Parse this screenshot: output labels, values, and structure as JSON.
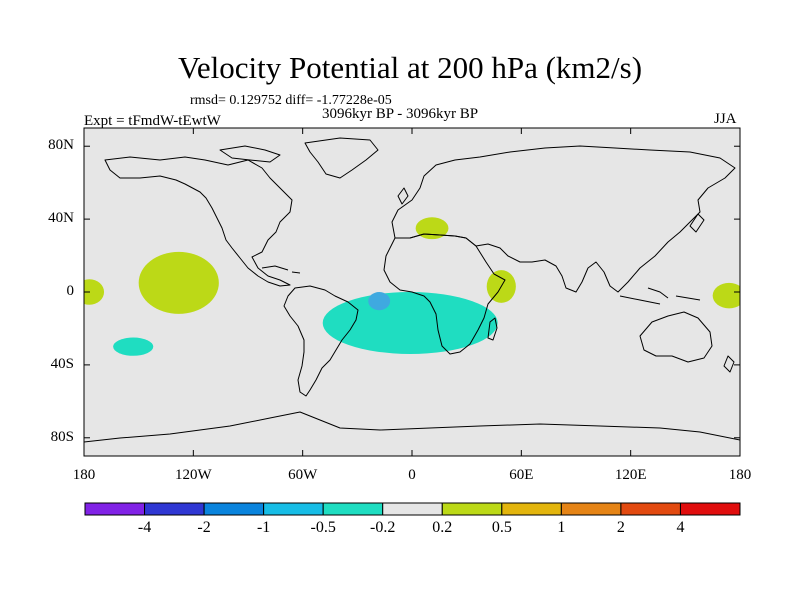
{
  "title": "Velocity Potential at 200 hPa (km2/s)",
  "stats": "rmsd= 0.129752 diff= -1.77228e-05",
  "period": "3096kyr BP - 3096kyr BP",
  "experiment": "Expt = tFmdW-tEwtW",
  "season": "JJA",
  "map": {
    "ocean_color": "#e6e6e6",
    "coast_color": "#000000",
    "lat_ticks": [
      {
        "lat": 80,
        "label": "80N"
      },
      {
        "lat": 40,
        "label": "40N"
      },
      {
        "lat": 0,
        "label": "0"
      },
      {
        "lat": -40,
        "label": "40S"
      },
      {
        "lat": -80,
        "label": "80S"
      }
    ],
    "lon_ticks": [
      {
        "lon": -180,
        "label": "180"
      },
      {
        "lon": -120,
        "label": "120W"
      },
      {
        "lon": -60,
        "label": "60W"
      },
      {
        "lon": 0,
        "label": "0"
      },
      {
        "lon": 60,
        "label": "60E"
      },
      {
        "lon": 120,
        "label": "120E"
      },
      {
        "lon": 180,
        "label": "180"
      }
    ]
  },
  "anomalies": [
    {
      "name": "central-pacific-positive",
      "level": "0.2 to 0.5",
      "color": "#bcd917",
      "center": [
        -128,
        5
      ],
      "radius": [
        22,
        17
      ]
    },
    {
      "name": "date-line-positive",
      "level": "0.2 to 0.5",
      "color": "#bcd917",
      "center": [
        -177,
        0
      ],
      "radius": [
        8,
        7
      ]
    },
    {
      "name": "south-pacific-negative",
      "level": "-0.5 to -0.2",
      "color": "#1fddc1",
      "center": [
        -153,
        -30
      ],
      "radius": [
        11,
        5
      ]
    },
    {
      "name": "south-atlantic-negative",
      "level": "-0.5 to -0.2",
      "color": "#1fddc1",
      "center": [
        -1,
        -17
      ],
      "radius": [
        48,
        17
      ]
    },
    {
      "name": "south-atlantic-core",
      "level": "-1 to -0.5",
      "color": "#3fa9e0",
      "center": [
        -18,
        -5
      ],
      "radius": [
        6,
        5
      ]
    },
    {
      "name": "north-africa-positive",
      "level": "0.2 to 0.5",
      "color": "#bcd917",
      "center": [
        11,
        35
      ],
      "radius": [
        9,
        6
      ]
    },
    {
      "name": "indian-ocean-positive",
      "level": "0.2 to 0.5",
      "color": "#bcd917",
      "center": [
        49,
        3
      ],
      "radius": [
        8,
        9
      ]
    },
    {
      "name": "west-pacific-positive",
      "level": "0.2 to 0.5",
      "color": "#bcd917",
      "center": [
        174,
        -2
      ],
      "radius": [
        9,
        7
      ]
    }
  ],
  "colorbar": {
    "colors": [
      "#8122e6",
      "#2f37d3",
      "#0a84dd",
      "#17bde6",
      "#1fddc1",
      "#e6e6e6",
      "#bcd917",
      "#e3b50d",
      "#e58416",
      "#e24a10",
      "#e00d0d"
    ],
    "labels": [
      "-4",
      "-2",
      "-1",
      "-0.5",
      "-0.2",
      "0.2",
      "0.5",
      "1",
      "2",
      "4"
    ]
  }
}
